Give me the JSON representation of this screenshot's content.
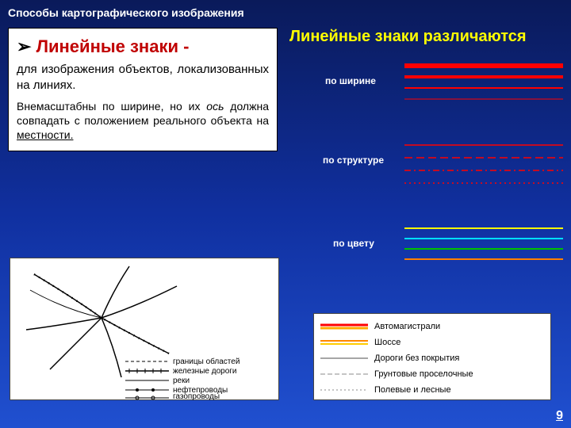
{
  "title": "Способы картографического изображения",
  "definition": {
    "heading": "Линейные знаки -",
    "body1": "для изображения объектов, локализованных на линиях.",
    "body2_a": "Внемасштабны по ширине, но их ",
    "body2_i": "ось",
    "body2_b": " должна совпадать с положением реального объекта на ",
    "body2_u": "местности.",
    "bullet": "➢"
  },
  "right": {
    "title": "Линейные знаки различаются",
    "cat1": "по ширине",
    "cat2": "по структуре",
    "cat3": "по цвету"
  },
  "colors": {
    "red": "#ff0000",
    "yellow": "#ffff00",
    "cyan": "#00e0ff",
    "green": "#00c000",
    "orange": "#ff8000",
    "white": "#ffffff"
  },
  "width_lines": [
    {
      "w": 6,
      "c": "#ff0000"
    },
    {
      "w": 4,
      "c": "#ff0000"
    },
    {
      "w": 2,
      "c": "#ff0000"
    },
    {
      "w": 1,
      "c": "#ff0000"
    }
  ],
  "structure_lines": [
    {
      "w": 1.5,
      "dash": "",
      "c": "#ff0000"
    },
    {
      "w": 1.5,
      "dash": "10,5",
      "c": "#ff0000"
    },
    {
      "w": 1.5,
      "dash": "8,4,2,4",
      "c": "#ff0000"
    },
    {
      "w": 1.5,
      "dash": "2,4",
      "c": "#ff0000"
    }
  ],
  "color_lines": [
    {
      "c": "#ffff00"
    },
    {
      "c": "#00e0ff"
    },
    {
      "c": "#00c000"
    },
    {
      "c": "#ff8000"
    }
  ],
  "map_legend": {
    "l1": "границы областей",
    "l2": "железные дороги",
    "l3": "реки",
    "l4": "нефтепроводы",
    "l5": "газопроводы"
  },
  "road_legend": [
    {
      "label": "Автомагистрали",
      "top": "#ff0000",
      "bot": "#ffaa00",
      "w": 3
    },
    {
      "label": "Шоссе",
      "top": "#ff8800",
      "bot": "#ffcc00",
      "w": 2
    },
    {
      "label": "Дороги без покрытия",
      "top": "#888",
      "bot": "",
      "w": 1.5
    },
    {
      "label": "Грунтовые проселочные",
      "top": "#888",
      "bot": "",
      "w": 1,
      "dash": "6,3"
    },
    {
      "label": "Полевые и лесные",
      "top": "#888",
      "bot": "",
      "w": 1,
      "dash": "2,3"
    }
  ],
  "page": "9"
}
